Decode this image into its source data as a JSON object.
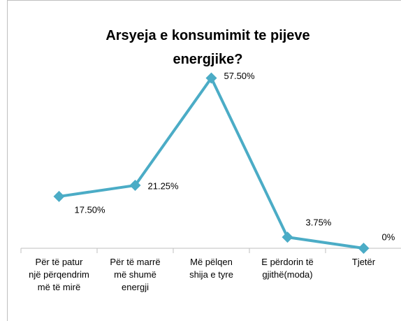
{
  "chart_data": {
    "type": "line",
    "title": "Arsyeja e konsumimit te pijeve energjike?",
    "categories": [
      "Për të patur një përqendrim më të mirë",
      "Për të marrë më shumë energji",
      "Më pëlqen shija e tyre",
      "E përdorin të gjithë(moda)",
      "Tjetër"
    ],
    "values": [
      17.5,
      21.25,
      57.5,
      3.75,
      0
    ],
    "value_labels": [
      "17.50%",
      "21.25%",
      "57.50%",
      "3.75%",
      "0%"
    ],
    "color": "#4bacc6",
    "ylim": [
      0,
      60
    ]
  }
}
